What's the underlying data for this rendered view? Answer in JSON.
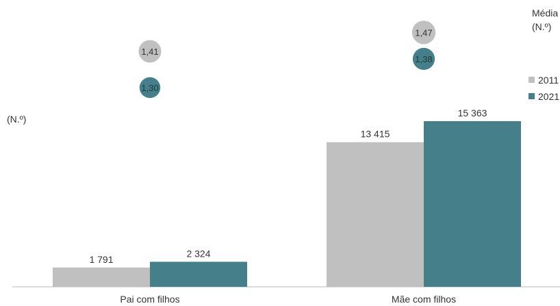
{
  "chart_data": {
    "type": "bar",
    "ylabel": "(N.º)",
    "categories": [
      "Pai com filhos",
      "Mãe com filhos"
    ],
    "series": [
      {
        "name": "2011",
        "color": "#c0c0c0",
        "values": [
          1791,
          13415
        ],
        "labels": [
          "1 791",
          "13 415"
        ]
      },
      {
        "name": "2021",
        "color": "#447f8a",
        "values": [
          2324,
          15363
        ],
        "labels": [
          "2 324",
          "15 363"
        ]
      }
    ],
    "ylim": [
      0,
      16000
    ],
    "grid": false,
    "legend_position": "right",
    "average": {
      "title": "Média",
      "unit": "(N.º)",
      "series": [
        {
          "name": "2011",
          "values": [
            1.41,
            1.47
          ],
          "labels": [
            "1,41",
            "1,47"
          ]
        },
        {
          "name": "2021",
          "values": [
            1.3,
            1.38
          ],
          "labels": [
            "1,30",
            "1,38"
          ]
        }
      ]
    }
  }
}
